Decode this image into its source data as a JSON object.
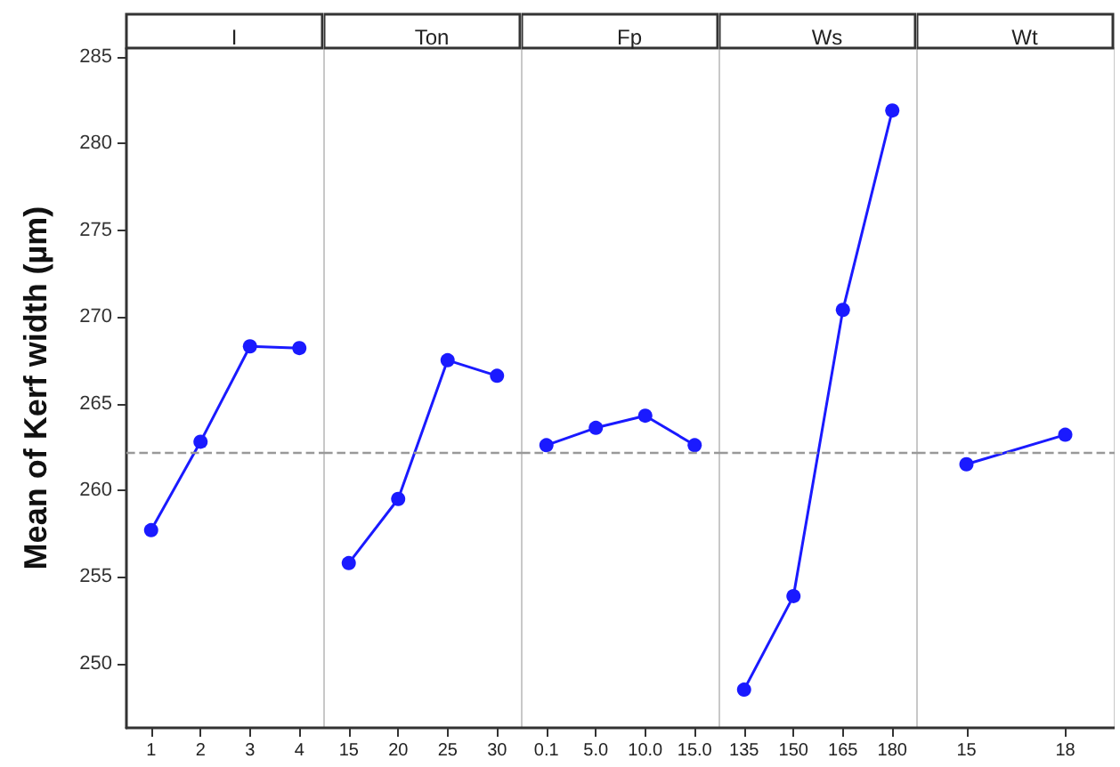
{
  "chart_data": [
    {
      "type": "line",
      "title": "I",
      "ylabel": "Mean of Kerf width (µm)",
      "categories": [
        "1",
        "2",
        "3",
        "4"
      ],
      "values": [
        257.7,
        262.8,
        268.3,
        268.2
      ],
      "color": "#1a1aff",
      "marker": "circle",
      "ylim": [
        246.3,
        285.5
      ],
      "yticks": [
        250,
        255,
        260,
        265,
        270,
        275,
        280,
        285
      ],
      "ref_lines": [
        {
          "axis": "y",
          "value": 262.2,
          "color": "#999999",
          "line_style": "dashed"
        }
      ],
      "grid": false
    },
    {
      "type": "line",
      "title": "Ton",
      "categories": [
        "15",
        "20",
        "25",
        "30"
      ],
      "values": [
        255.8,
        259.5,
        267.5,
        266.6
      ],
      "color": "#1a1aff",
      "marker": "circle",
      "ylim": [
        246.3,
        285.5
      ],
      "tick_labels": "x",
      "ref_lines": [
        {
          "axis": "y",
          "value": 262.2,
          "color": "#999999",
          "line_style": "dashed"
        }
      ],
      "grid": false
    },
    {
      "type": "line",
      "title": "Fp",
      "categories": [
        "0.1",
        "5.0",
        "10.0",
        "15.0"
      ],
      "values": [
        262.6,
        263.6,
        264.3,
        262.6
      ],
      "color": "#1a1aff",
      "marker": "circle",
      "ylim": [
        246.3,
        285.5
      ],
      "tick_labels": "x",
      "ref_lines": [
        {
          "axis": "y",
          "value": 262.2,
          "color": "#999999",
          "line_style": "dashed"
        }
      ],
      "grid": false
    },
    {
      "type": "line",
      "title": "Ws",
      "categories": [
        "135",
        "150",
        "165",
        "180"
      ],
      "values": [
        248.5,
        253.9,
        270.4,
        281.9
      ],
      "color": "#1a1aff",
      "marker": "circle",
      "ylim": [
        246.3,
        285.5
      ],
      "tick_labels": "x",
      "ref_lines": [
        {
          "axis": "y",
          "value": 262.2,
          "color": "#999999",
          "line_style": "dashed"
        }
      ],
      "grid": false
    },
    {
      "type": "line",
      "title": "Wt",
      "categories": [
        "15",
        "18"
      ],
      "values": [
        261.5,
        263.2
      ],
      "color": "#1a1aff",
      "marker": "circle",
      "ylim": [
        246.3,
        285.5
      ],
      "tick_labels": "x",
      "ref_lines": [
        {
          "axis": "y",
          "value": 262.2,
          "color": "#999999",
          "line_style": "dashed"
        }
      ],
      "grid": false
    }
  ]
}
